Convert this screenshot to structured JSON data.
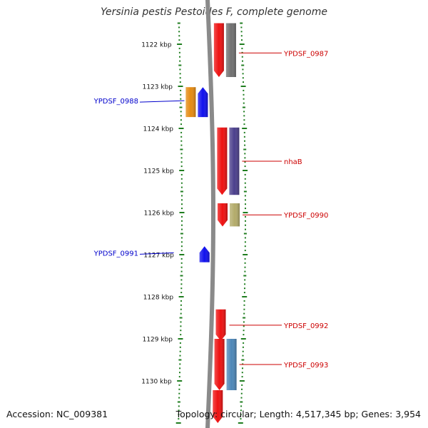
{
  "header": {
    "title": "Yersinia pestis Pestoides F, complete genome"
  },
  "footer": {
    "accession": "Accession: NC_009381",
    "topology": "Topology: circular; Length: 4,517,345 bp; Genes: 3,954"
  },
  "colors": {
    "tick": "#1f7d1f",
    "cds_forward": "#ee1111",
    "cds_reverse": "#1010ee",
    "label_forward": "#cc0000",
    "label_reverse": "#0000cc",
    "backbone": "#8a8a8a",
    "gene_orange": "#e58a10",
    "gene_gray": "#707070",
    "gene_purple": "#4b3f8c",
    "gene_olive": "#b3ab6a",
    "gene_steel": "#4d86b8"
  },
  "axis": {
    "unit": "kbp",
    "start_kbp": 1121.5,
    "end_kbp": 1131.0,
    "labels": [
      {
        "kbp": 1122,
        "text": "1122 kbp"
      },
      {
        "kbp": 1123,
        "text": "1123 kbp"
      },
      {
        "kbp": 1124,
        "text": "1124 kbp"
      },
      {
        "kbp": 1125,
        "text": "1125 kbp"
      },
      {
        "kbp": 1126,
        "text": "1126 kbp"
      },
      {
        "kbp": 1127,
        "text": "1127 kbp"
      },
      {
        "kbp": 1128,
        "text": "1128 kbp"
      },
      {
        "kbp": 1129,
        "text": "1129 kbp"
      },
      {
        "kbp": 1130,
        "text": "1130 kbp"
      }
    ]
  },
  "features": [
    {
      "name": "YPDSF_0987",
      "strand": "+",
      "start_kbp": 1121.5,
      "end_kbp": 1122.78,
      "color_key": "gene_gray"
    },
    {
      "name": "YPDSF_0988",
      "strand": "-",
      "start_kbp": 1123.02,
      "end_kbp": 1123.73,
      "color_key": "gene_orange"
    },
    {
      "name": "nhaB",
      "strand": "+",
      "start_kbp": 1123.98,
      "end_kbp": 1125.58,
      "color_key": "gene_purple"
    },
    {
      "name": "YPDSF_0990",
      "strand": "+",
      "start_kbp": 1125.78,
      "end_kbp": 1126.33,
      "color_key": "gene_olive"
    },
    {
      "name": "YPDSF_0991",
      "strand": "-",
      "start_kbp": 1126.8,
      "end_kbp": 1127.18,
      "color_key": null
    },
    {
      "name": "YPDSF_0992",
      "strand": "+",
      "start_kbp": 1128.3,
      "end_kbp": 1129.05,
      "color_key": null
    },
    {
      "name": "YPDSF_0993",
      "strand": "+",
      "start_kbp": 1129.0,
      "end_kbp": 1130.22,
      "color_key": "gene_steel"
    },
    {
      "name": "",
      "strand": "+",
      "start_kbp": 1130.22,
      "end_kbp": 1131.0,
      "color_key": null
    }
  ]
}
